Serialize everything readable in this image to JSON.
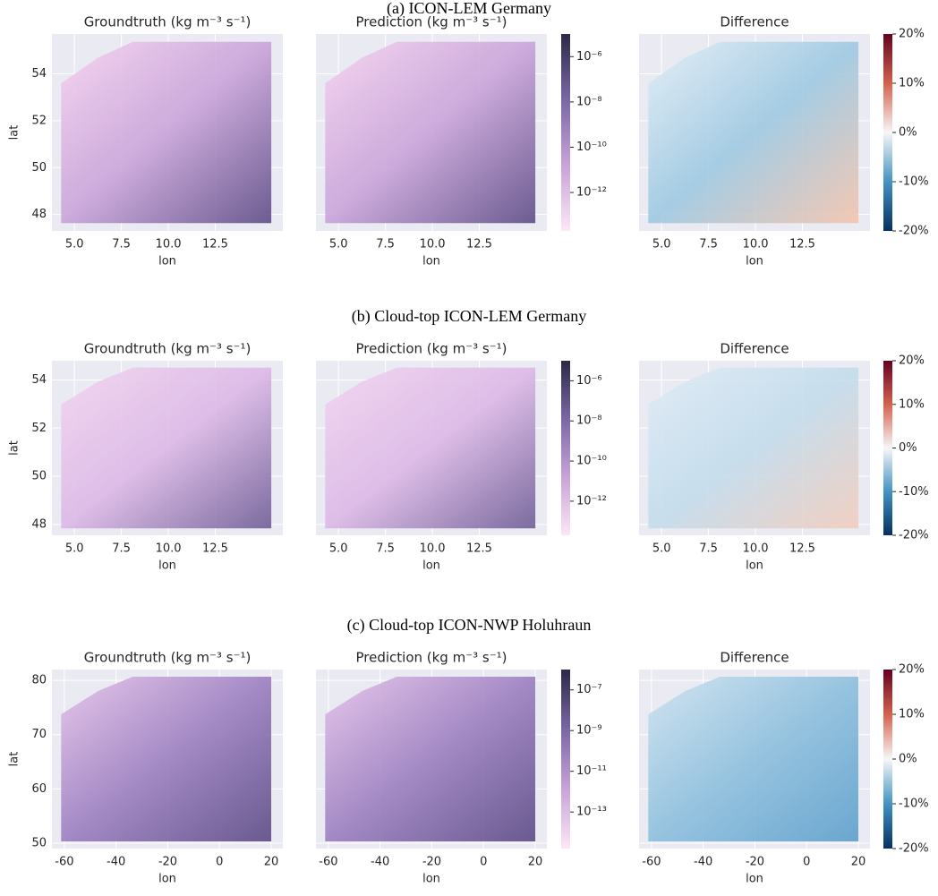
{
  "row_titles": [
    "(a) ICON-LEM Germany",
    "(b) Cloud-top ICON-LEM Germany",
    "(c) Cloud-top ICON-NWP Holuhraun"
  ],
  "chart_data": [
    {
      "type": "heatmap",
      "title": "Groundtruth (kg m⁻³ s⁻¹)",
      "xlabel": "lon",
      "ylabel": "lat",
      "ytick_labels": true,
      "colors": [
        "#f6d2f0",
        "#c9a3d9",
        "#5e4c86"
      ],
      "xlim": [
        3.8,
        16.1
      ],
      "xticks": [
        {
          "value": 5,
          "label": "5.0"
        },
        7.5,
        {
          "value": 10,
          "label": "10.0"
        },
        12.5
      ],
      "ylim": [
        47.3,
        55.7
      ],
      "yticks": [
        48,
        50,
        52,
        54
      ]
    },
    {
      "type": "heatmap",
      "title": "Prediction (kg m⁻³ s⁻¹)",
      "xlabel": "lon",
      "ytick_labels": false,
      "colors": [
        "#f6d2f0",
        "#c9a3d9",
        "#5e4c86"
      ],
      "xlim": [
        3.8,
        16.1
      ],
      "xticks": [
        {
          "value": 5,
          "label": "5.0"
        },
        7.5,
        {
          "value": 10,
          "label": "10.0"
        },
        12.5
      ],
      "ylim": [
        47.3,
        55.7
      ],
      "yticks": [
        48,
        50,
        52,
        54
      ]
    },
    {
      "type": "colorbar",
      "log": true,
      "colors": [
        "#fde6f6",
        "#c9a3d9",
        "#7a67a6",
        "#2c2948"
      ],
      "ylim": [
        2e-14,
        1e-05
      ],
      "yticks": [
        {
          "value": 1e-12,
          "label": "10⁻¹²"
        },
        {
          "value": 1e-10,
          "label": "10⁻¹⁰"
        },
        {
          "value": 1e-08,
          "label": "10⁻⁸"
        },
        {
          "value": 1e-06,
          "label": "10⁻⁶"
        }
      ]
    },
    {
      "type": "heatmap",
      "title": "Difference",
      "xlabel": "lon",
      "ytick_labels": false,
      "colors": [
        "#e3eef6",
        "#9ec9e2",
        "#f4c4ad"
      ],
      "xlim": [
        3.8,
        16.1
      ],
      "xticks": [
        {
          "value": 5,
          "label": "5.0"
        },
        7.5,
        {
          "value": 10,
          "label": "10.0"
        },
        12.5
      ],
      "ylim": [
        47.3,
        55.7
      ],
      "yticks": [
        48,
        50,
        52,
        54
      ]
    },
    {
      "type": "colorbar",
      "log": false,
      "colors": [
        "#053061",
        "#4393c3",
        "#f7f7f7",
        "#d6604d",
        "#67001f"
      ],
      "ylim": [
        -20,
        20
      ],
      "yticks": [
        {
          "value": -20,
          "label": "-20%"
        },
        {
          "value": -10,
          "label": "-10%"
        },
        {
          "value": 0,
          "label": "0%"
        },
        {
          "value": 10,
          "label": "10%"
        },
        {
          "value": 20,
          "label": "20%"
        }
      ]
    },
    {
      "type": "heatmap",
      "title": "Groundtruth (kg m⁻³ s⁻¹)",
      "xlabel": "lon",
      "ylabel": "lat",
      "ytick_labels": true,
      "colors": [
        "#f3d4f0",
        "#dcb8e6",
        "#6f5d96"
      ],
      "xlim": [
        3.8,
        16.1
      ],
      "xticks": [
        {
          "value": 5,
          "label": "5.0"
        },
        7.5,
        {
          "value": 10,
          "label": "10.0"
        },
        12.5
      ],
      "ylim": [
        47.55,
        54.8
      ],
      "yticks": [
        48,
        50,
        52,
        54
      ]
    },
    {
      "type": "heatmap",
      "title": "Prediction (kg m⁻³ s⁻¹)",
      "xlabel": "lon",
      "ytick_labels": false,
      "colors": [
        "#f3d4f0",
        "#dcb8e6",
        "#6f5d96"
      ],
      "xlim": [
        3.8,
        16.1
      ],
      "xticks": [
        {
          "value": 5,
          "label": "5.0"
        },
        7.5,
        {
          "value": 10,
          "label": "10.0"
        },
        12.5
      ],
      "ylim": [
        47.55,
        54.8
      ],
      "yticks": [
        48,
        50,
        52,
        54
      ]
    },
    {
      "type": "colorbar",
      "log": true,
      "colors": [
        "#fde6f6",
        "#c9a3d9",
        "#7a67a6",
        "#2c2948"
      ],
      "ylim": [
        2e-14,
        1e-05
      ],
      "yticks": [
        {
          "value": 1e-12,
          "label": "10⁻¹²"
        },
        {
          "value": 1e-10,
          "label": "10⁻¹⁰"
        },
        {
          "value": 1e-08,
          "label": "10⁻⁸"
        },
        {
          "value": 1e-06,
          "label": "10⁻⁶"
        }
      ]
    },
    {
      "type": "heatmap",
      "title": "Difference",
      "xlabel": "lon",
      "ytick_labels": false,
      "colors": [
        "#dfecf5",
        "#c3dcec",
        "#f2cdbd"
      ],
      "xlim": [
        3.8,
        16.1
      ],
      "xticks": [
        {
          "value": 5,
          "label": "5.0"
        },
        7.5,
        {
          "value": 10,
          "label": "10.0"
        },
        12.5
      ],
      "ylim": [
        47.55,
        54.8
      ],
      "yticks": [
        48,
        50,
        52,
        54
      ]
    },
    {
      "type": "colorbar",
      "log": false,
      "colors": [
        "#053061",
        "#4393c3",
        "#f7f7f7",
        "#d6604d",
        "#67001f"
      ],
      "ylim": [
        -20,
        20
      ],
      "yticks": [
        {
          "value": -20,
          "label": "-20%"
        },
        {
          "value": -10,
          "label": "-10%"
        },
        {
          "value": 0,
          "label": "0%"
        },
        {
          "value": 10,
          "label": "10%"
        },
        {
          "value": 20,
          "label": "20%"
        }
      ]
    },
    {
      "type": "heatmap",
      "title": "Groundtruth (kg m⁻³ s⁻¹)",
      "xlabel": "lon",
      "ylabel": "lat",
      "ytick_labels": true,
      "colors": [
        "#e7c2ea",
        "#9c7fc0",
        "#5b4a85"
      ],
      "xlim": [
        -64.8,
        24.5
      ],
      "xticks": [
        -60,
        -40,
        -20,
        0,
        20
      ],
      "ylim": [
        49,
        82
      ],
      "yticks": [
        50,
        60,
        70,
        80
      ]
    },
    {
      "type": "heatmap",
      "title": "Prediction (kg m⁻³ s⁻¹)",
      "xlabel": "lon",
      "ytick_labels": false,
      "colors": [
        "#e7c2ea",
        "#9c7fc0",
        "#5b4a85"
      ],
      "xlim": [
        -64.8,
        24.5
      ],
      "xticks": [
        -60,
        -40,
        -20,
        0,
        20
      ],
      "ylim": [
        49,
        82
      ],
      "yticks": [
        50,
        60,
        70,
        80
      ]
    },
    {
      "type": "colorbar",
      "log": true,
      "colors": [
        "#fde6f6",
        "#c9a3d9",
        "#7a67a6",
        "#2c2948"
      ],
      "ylim": [
        1.6e-15,
        1e-06
      ],
      "yticks": [
        {
          "value": 1e-13,
          "label": "10⁻¹³"
        },
        {
          "value": 1e-11,
          "label": "10⁻¹¹"
        },
        {
          "value": 1e-09,
          "label": "10⁻⁹"
        },
        {
          "value": 1e-07,
          "label": "10⁻⁷"
        }
      ]
    },
    {
      "type": "heatmap",
      "title": "Difference",
      "xlabel": "lon",
      "ytick_labels": false,
      "colors": [
        "#cfe3f0",
        "#8dbfdd",
        "#5d9fcc"
      ],
      "xlim": [
        -64.8,
        24.5
      ],
      "xticks": [
        -60,
        -40,
        -20,
        0,
        20
      ],
      "ylim": [
        49,
        82
      ],
      "yticks": [
        50,
        60,
        70,
        80
      ]
    },
    {
      "type": "colorbar",
      "log": false,
      "colors": [
        "#053061",
        "#4393c3",
        "#f7f7f7",
        "#d6604d",
        "#67001f"
      ],
      "ylim": [
        -20,
        20
      ],
      "yticks": [
        {
          "value": -20,
          "label": "-20%"
        },
        {
          "value": -10,
          "label": "-10%"
        },
        {
          "value": 0,
          "label": "0%"
        },
        {
          "value": 10,
          "label": "10%"
        },
        {
          "value": 20,
          "label": "20%"
        }
      ]
    }
  ]
}
